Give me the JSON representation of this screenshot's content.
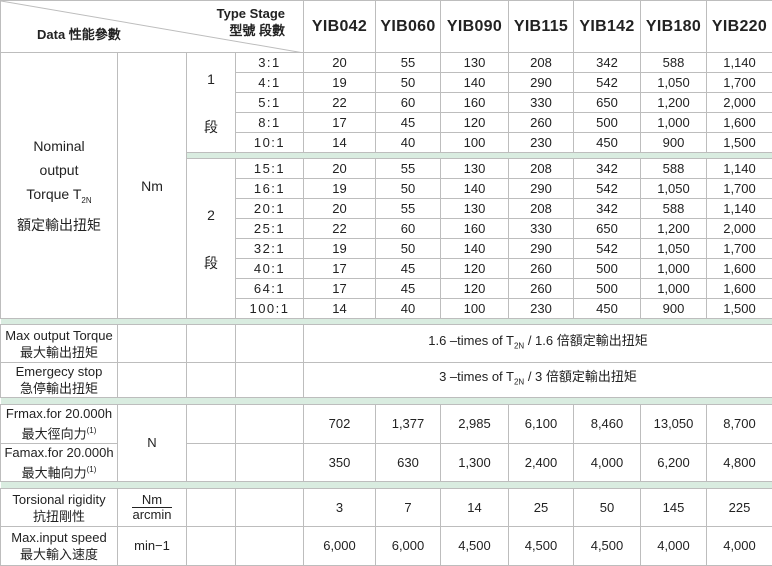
{
  "header": {
    "type_stage_en": "Type Stage",
    "type_stage_zh": "型號 段數",
    "data_label": "Data 性能參數",
    "models": [
      "YIB042",
      "YIB060",
      "YIB090",
      "YIB115",
      "YIB142",
      "YIB180",
      "YIB220"
    ]
  },
  "nominal": {
    "label_lines": [
      "Nominal",
      "output",
      "Torque T"
    ],
    "label_sub": "2N",
    "label_zh": "額定輸出扭矩",
    "unit": "Nm",
    "stage1": {
      "label": "1",
      "label_zh": "段",
      "rows": [
        {
          "ratio": "3:1",
          "values": [
            "20",
            "55",
            "130",
            "208",
            "342",
            "588",
            "1,140"
          ]
        },
        {
          "ratio": "4:1",
          "values": [
            "19",
            "50",
            "140",
            "290",
            "542",
            "1,050",
            "1,700"
          ]
        },
        {
          "ratio": "5:1",
          "values": [
            "22",
            "60",
            "160",
            "330",
            "650",
            "1,200",
            "2,000"
          ]
        },
        {
          "ratio": "8:1",
          "values": [
            "17",
            "45",
            "120",
            "260",
            "500",
            "1,000",
            "1,600"
          ]
        },
        {
          "ratio": "10:1",
          "values": [
            "14",
            "40",
            "100",
            "230",
            "450",
            "900",
            "1,500"
          ]
        }
      ]
    },
    "stage2": {
      "label": "2",
      "label_zh": "段",
      "rows": [
        {
          "ratio": "15:1",
          "values": [
            "20",
            "55",
            "130",
            "208",
            "342",
            "588",
            "1,140"
          ]
        },
        {
          "ratio": "16:1",
          "values": [
            "19",
            "50",
            "140",
            "290",
            "542",
            "1,050",
            "1,700"
          ]
        },
        {
          "ratio": "20:1",
          "values": [
            "20",
            "55",
            "130",
            "208",
            "342",
            "588",
            "1,140"
          ]
        },
        {
          "ratio": "25:1",
          "values": [
            "22",
            "60",
            "160",
            "330",
            "650",
            "1,200",
            "2,000"
          ]
        },
        {
          "ratio": "32:1",
          "values": [
            "19",
            "50",
            "140",
            "290",
            "542",
            "1,050",
            "1,700"
          ]
        },
        {
          "ratio": "40:1",
          "values": [
            "17",
            "45",
            "120",
            "260",
            "500",
            "1,000",
            "1,600"
          ]
        },
        {
          "ratio": "64:1",
          "values": [
            "17",
            "45",
            "120",
            "260",
            "500",
            "1,000",
            "1,600"
          ]
        },
        {
          "ratio": "100:1",
          "values": [
            "14",
            "40",
            "100",
            "230",
            "450",
            "900",
            "1,500"
          ]
        }
      ]
    }
  },
  "max_torque": {
    "label_en": "Max output Torque",
    "label_zh": "最大輸出扭矩",
    "text_pre": "1.6 –times of T",
    "text_sub": "2N",
    "text_post": " / 1.6 倍額定輸出扭矩"
  },
  "emergency": {
    "label_en": "Emergecy stop",
    "label_zh": "急停輸出扭矩",
    "text_pre": "3 –times of T",
    "text_sub": "2N",
    "text_post": " / 3 倍額定輸出扭矩"
  },
  "forces": {
    "unit": "N",
    "fr": {
      "label_en": "Frmax.for 20.000h",
      "label_zh": "最大徑向力",
      "note": "(1)",
      "values": [
        "702",
        "1,377",
        "2,985",
        "6,100",
        "8,460",
        "13,050",
        "8,700"
      ]
    },
    "fa": {
      "label_en": "Famax.for 20.000h",
      "label_zh": "最大軸向力",
      "note": "(1)",
      "values": [
        "350",
        "630",
        "1,300",
        "2,400",
        "4,000",
        "6,200",
        "4,800"
      ]
    }
  },
  "rigidity": {
    "label_en": "Torsional rigidity",
    "label_zh": "抗扭剛性",
    "unit_num": "Nm",
    "unit_den": "arcmin",
    "values": [
      "3",
      "7",
      "14",
      "25",
      "50",
      "145",
      "225"
    ]
  },
  "speed": {
    "label_en": "Max.input speed",
    "label_zh": "最大輸入速度",
    "unit": "min−1",
    "values": [
      "6,000",
      "6,000",
      "4,500",
      "4,500",
      "4,500",
      "4,000",
      "4,000"
    ]
  }
}
